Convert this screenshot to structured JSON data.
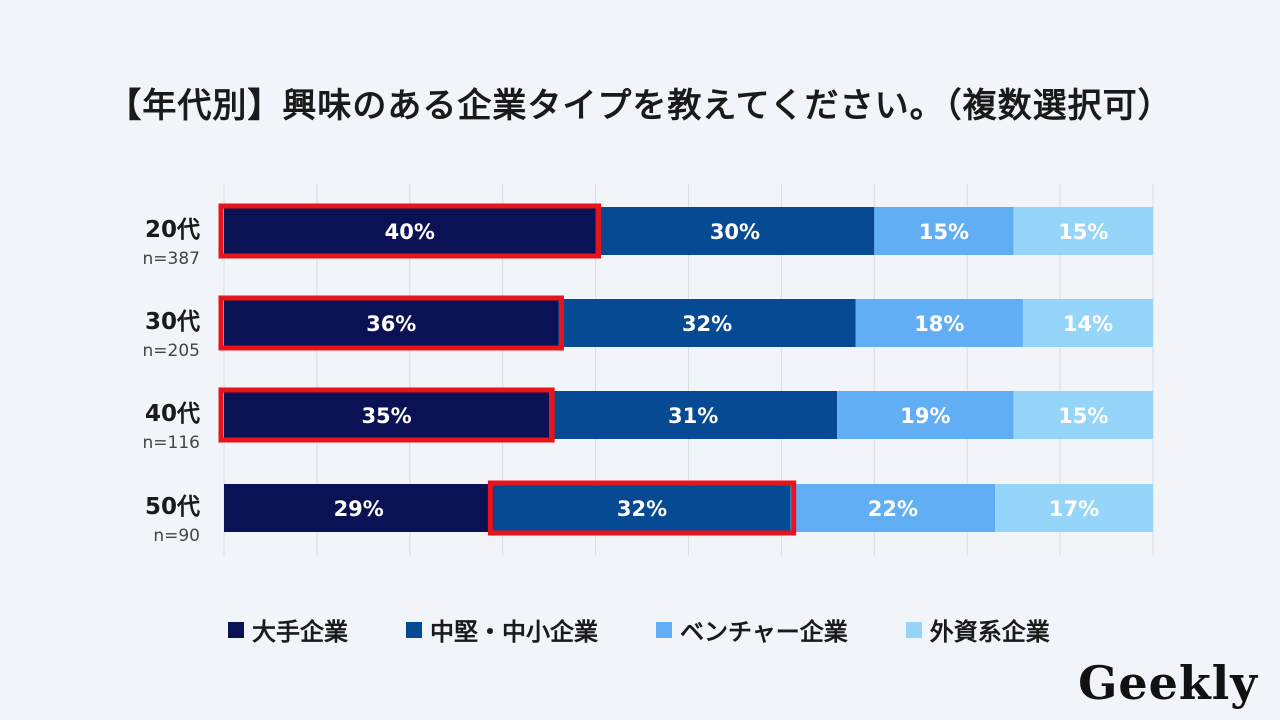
{
  "title": "【年代別】興味のある企業タイプを教えてください。（複数選択可）",
  "logo": "Geekly",
  "colors": {
    "large": "#0b1155",
    "mid": "#064a93",
    "venture": "#62aef5",
    "foreign": "#94d5f9",
    "highlight": "#e8131b",
    "grid": "#d9dde4"
  },
  "chart_data": {
    "type": "bar",
    "orientation": "horizontal",
    "stacked": true,
    "percent_stacked": true,
    "categories": [
      "20代",
      "30代",
      "40代",
      "50代"
    ],
    "category_samples": [
      "n=387",
      "n=205",
      "n=116",
      "n=90"
    ],
    "series": [
      {
        "name": "大手企業",
        "values": [
          40,
          36,
          35,
          29
        ],
        "labels": [
          "40%",
          "36%",
          "35%",
          "29%"
        ]
      },
      {
        "name": "中堅・中小企業",
        "values": [
          30,
          32,
          31,
          32
        ],
        "labels": [
          "30%",
          "32%",
          "31%",
          "32%"
        ]
      },
      {
        "name": "ベンチャー企業",
        "values": [
          15,
          18,
          19,
          22
        ],
        "labels": [
          "15%",
          "18%",
          "19%",
          "22%"
        ]
      },
      {
        "name": "外資系企業",
        "values": [
          15,
          14,
          15,
          17
        ],
        "labels": [
          "15%",
          "14%",
          "15%",
          "17%"
        ]
      }
    ],
    "highlights": [
      {
        "category_index": 0,
        "series_index": 0
      },
      {
        "category_index": 1,
        "series_index": 0
      },
      {
        "category_index": 2,
        "series_index": 0
      },
      {
        "category_index": 3,
        "series_index": 1
      }
    ],
    "xlim": [
      0,
      100
    ],
    "grid": true,
    "legend": "bottom"
  }
}
